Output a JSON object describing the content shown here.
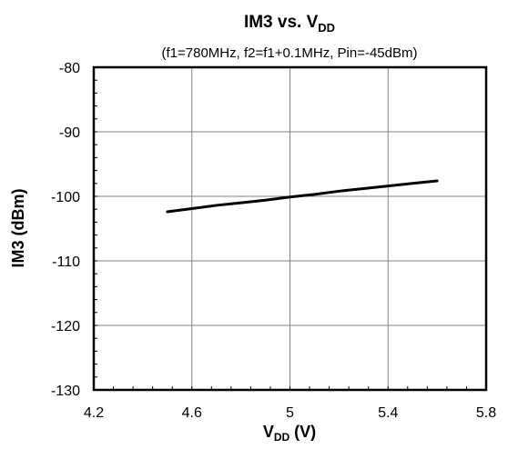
{
  "chart_data": {
    "type": "line",
    "title": "IM3 vs. V",
    "title_subscript": "DD",
    "subtitle": "(f1=780MHz, f2=f1+0.1MHz, Pin=-45dBm)",
    "xlabel": "V",
    "xlabel_subscript": "DD",
    "xlabel_suffix": " (V)",
    "ylabel": "IM3 (dBm)",
    "xlim": [
      4.2,
      5.8
    ],
    "ylim": [
      -130,
      -80
    ],
    "x_ticks": [
      "4.2",
      "4.6",
      "5",
      "5.4",
      "5.8"
    ],
    "y_ticks": [
      "-80",
      "-90",
      "-100",
      "-110",
      "-120",
      "-130"
    ],
    "grid": true,
    "series": [
      {
        "x": [
          4.5,
          4.6,
          4.7,
          4.8,
          4.9,
          5.0,
          5.1,
          5.2,
          5.3,
          5.4,
          5.5,
          5.6
        ],
        "y": [
          -102.4,
          -101.9,
          -101.4,
          -101.0,
          -100.6,
          -100.1,
          -99.7,
          -99.2,
          -98.8,
          -98.4,
          -98.0,
          -97.6
        ]
      }
    ],
    "line_color": "#000000",
    "grid_color": "#808080"
  }
}
